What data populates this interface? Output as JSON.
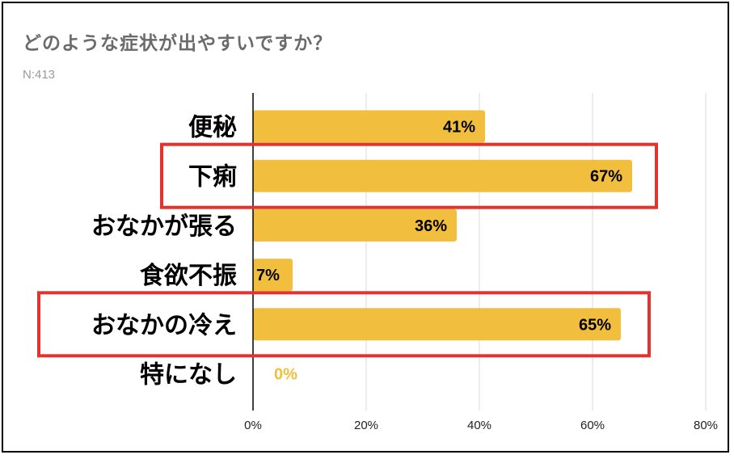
{
  "chart_data": {
    "type": "bar",
    "orientation": "horizontal",
    "title": "どのような症状が出やすいですか？",
    "subtitle": "N:413",
    "categories": [
      "便秘",
      "下痢",
      "おなかが張る",
      "食欲不振",
      "おなかの冷え",
      "特になし"
    ],
    "values": [
      41,
      67,
      36,
      7,
      65,
      0
    ],
    "value_labels": [
      "41%",
      "67%",
      "36%",
      "7%",
      "65%",
      "0%"
    ],
    "xlim": [
      0,
      80
    ],
    "x_ticks": [
      "0%",
      "20%",
      "40%",
      "60%",
      "80%"
    ],
    "grid": true,
    "highlighted": [
      "下痢",
      "おなかの冷え"
    ],
    "colors": {
      "bar": "#f2be3e",
      "highlight_box": "#e5322d",
      "zero_label": "#f2be3e",
      "grid": "#d9d9d9"
    }
  }
}
